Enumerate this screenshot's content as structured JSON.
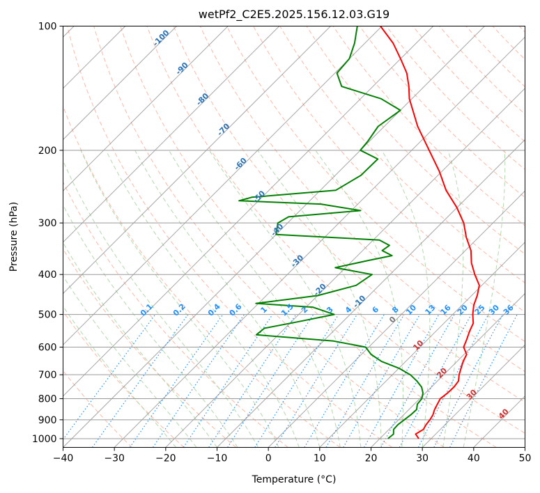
{
  "chart_data": {
    "type": "line",
    "subtype": "skew-t log-p diagram",
    "title": "wetPf2_C2E5.2025.156.12.03.G19",
    "xlabel": "Temperature (°C)",
    "ylabel": "Pressure (hPa)",
    "xlim": [
      -40,
      50
    ],
    "ylim": [
      1050,
      100
    ],
    "y_scale": "log",
    "x_ticks": [
      -40,
      -30,
      -20,
      -10,
      0,
      10,
      20,
      30,
      40,
      50
    ],
    "y_ticks": [
      100,
      200,
      300,
      400,
      500,
      600,
      700,
      800,
      900,
      1000
    ],
    "x_tick_labels": [
      "−40",
      "−30",
      "−20",
      "−10",
      "0",
      "10",
      "20",
      "30",
      "40",
      "50"
    ],
    "y_tick_labels": [
      "100",
      "200",
      "300",
      "400",
      "500",
      "600",
      "700",
      "800",
      "900",
      "1000"
    ],
    "grid": true,
    "colors": {
      "temperature": "#ff0000",
      "dewpoint": "#008000",
      "isotherm": "#888888",
      "dry_adiabat": "#fca68c",
      "moist_adiabat": "#a8d5a2",
      "mixing_ratio": "#1e90ff",
      "wet_bulb_isotherm": "#2f5f9f",
      "label_blue": "#2a72b5",
      "label_red": "#d03030",
      "label_mixing": "#1e90ff"
    },
    "series": [
      {
        "key": "temperature",
        "pressure": [
          1000,
          975,
          950,
          925,
          900,
          875,
          850,
          825,
          800,
          775,
          750,
          725,
          700,
          675,
          650,
          625,
          600,
          575,
          550,
          525,
          500,
          475,
          450,
          425,
          400,
          375,
          350,
          325,
          300,
          275,
          250,
          225,
          200,
          175,
          150,
          140,
          130,
          120,
          110,
          100
        ],
        "values": [
          27.6,
          26.1,
          26.7,
          26.3,
          26.1,
          25.7,
          25.0,
          24.5,
          24.0,
          24.3,
          24.4,
          24.1,
          23.0,
          22.1,
          21.2,
          20.5,
          18.5,
          17.6,
          16.6,
          15.7,
          13.9,
          12.3,
          11.1,
          9.5,
          6.5,
          3.6,
          1.1,
          -2.4,
          -5.7,
          -10.1,
          -15.5,
          -20.5,
          -26.6,
          -33.5,
          -40.5,
          -43.0,
          -46.0,
          -50.0,
          -54.5,
          -60.3
        ]
      },
      {
        "key": "dewpoint",
        "pressure": [
          1000,
          975,
          950,
          925,
          900,
          875,
          850,
          825,
          800,
          775,
          750,
          725,
          700,
          675,
          650,
          625,
          600,
          580,
          560,
          540,
          520,
          500,
          480,
          470,
          450,
          425,
          400,
          385,
          370,
          360,
          350,
          340,
          330,
          320,
          300,
          290,
          280,
          270,
          265,
          260,
          250,
          230,
          210,
          200,
          190,
          175,
          160,
          150,
          140,
          130,
          120,
          110,
          100
        ],
        "values": [
          21.6,
          21.8,
          20.9,
          20.8,
          21.1,
          21.4,
          21.5,
          20.6,
          20.4,
          19.5,
          18.1,
          16.0,
          13.5,
          10.0,
          5.3,
          1.9,
          -0.6,
          -8.0,
          -24.3,
          -24.0,
          -18.5,
          -13.1,
          -18.7,
          -30.5,
          -20.0,
          -14.5,
          -13.5,
          -22.0,
          -17.0,
          -13.3,
          -16.2,
          -15.8,
          -18.8,
          -40.0,
          -41.9,
          -41.0,
          -28.2,
          -37.2,
          -53.8,
          -52.0,
          -37.0,
          -35.0,
          -34.9,
          -40.0,
          -40.3,
          -41.2,
          -40.0,
          -46.0,
          -56.1,
          -59.6,
          -60.0,
          -62.0,
          -64.8
        ]
      }
    ],
    "label_sets": {
      "wet_bulb_isotherms": [
        "-100",
        "-90",
        "-80",
        "-70",
        "-60",
        "-50",
        "-40",
        "-30",
        "-20",
        "-10",
        "0",
        "10",
        "20",
        "30",
        "40"
      ],
      "mixing_ratios": [
        "0.1",
        "0.2",
        "0.4",
        "0.6",
        "1",
        "1.5",
        "2",
        "3",
        "4",
        "6",
        "8",
        "10",
        "13",
        "16",
        "20",
        "25",
        "30",
        "36"
      ]
    }
  }
}
